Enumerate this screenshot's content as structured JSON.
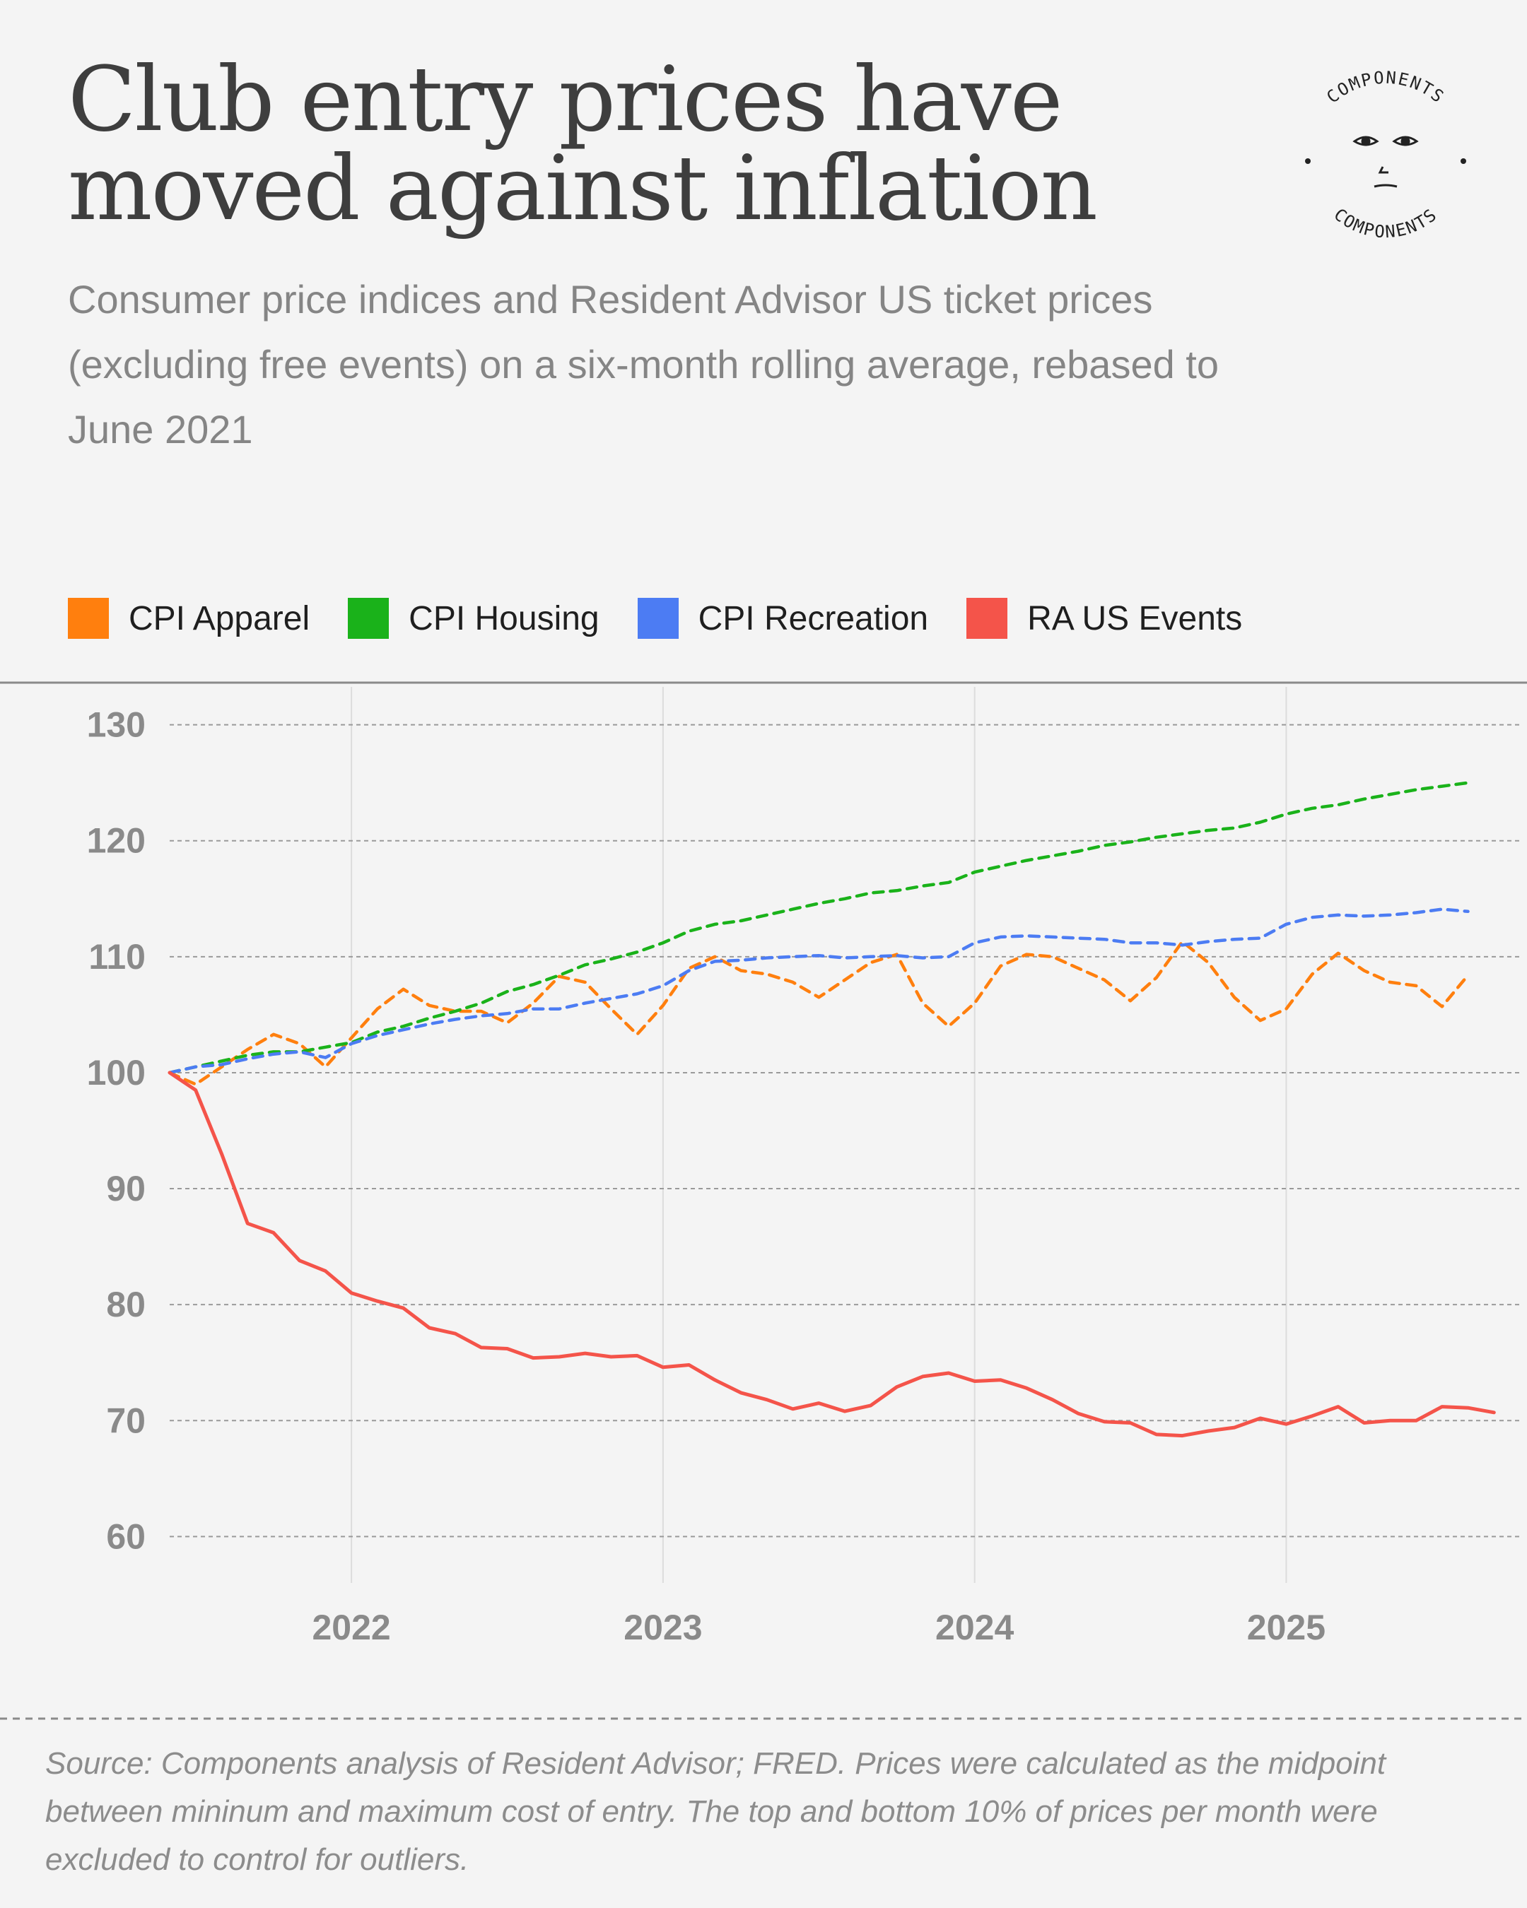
{
  "title": "Club entry prices have moved against inflation",
  "subtitle": "Consumer price indices and Resident Advisor US ticket prices (excluding free events) on a six-month rolling average, rebased to June 2021",
  "logo": {
    "text": "COMPONENTS",
    "icon": "face-icon"
  },
  "source": "Source: Components analysis of Resident Advisor; FRED. Prices were calculated as the midpoint between mininum and maximum cost of entry. The top and bottom 10% of prices per month were excluded to control for outliers.",
  "chart_data": {
    "type": "line",
    "title": "Club entry prices have moved against inflation",
    "ylim": [
      56,
      134
    ],
    "yticks": [
      60,
      70,
      80,
      90,
      100,
      110,
      120,
      130
    ],
    "xlim": [
      "2021-06",
      "2025-10"
    ],
    "xticks": [
      {
        "label": "2022",
        "x": "2022-01"
      },
      {
        "label": "2023",
        "x": "2023-01"
      },
      {
        "label": "2024",
        "x": "2024-01"
      },
      {
        "label": "2025",
        "x": "2025-01"
      }
    ],
    "grid": true,
    "legend_position": "top-left",
    "x": [
      "2021-06",
      "2021-07",
      "2021-08",
      "2021-09",
      "2021-10",
      "2021-11",
      "2021-12",
      "2022-01",
      "2022-02",
      "2022-03",
      "2022-04",
      "2022-05",
      "2022-06",
      "2022-07",
      "2022-08",
      "2022-09",
      "2022-10",
      "2022-11",
      "2022-12",
      "2023-01",
      "2023-02",
      "2023-03",
      "2023-04",
      "2023-05",
      "2023-06",
      "2023-07",
      "2023-08",
      "2023-09",
      "2023-10",
      "2023-11",
      "2023-12",
      "2024-01",
      "2024-02",
      "2024-03",
      "2024-04",
      "2024-05",
      "2024-06",
      "2024-07",
      "2024-08",
      "2024-09",
      "2024-10",
      "2024-11",
      "2024-12",
      "2025-01",
      "2025-02",
      "2025-03",
      "2025-04",
      "2025-05",
      "2025-06",
      "2025-07",
      "2025-08",
      "2025-09",
      "2025-10"
    ],
    "series": [
      {
        "name": "CPI Apparel",
        "color": "#ff7f0e",
        "dash": true,
        "values": [
          100,
          99,
          100.5,
          102,
          103.3,
          102.5,
          100.5,
          103,
          105.5,
          107.2,
          105.8,
          105.3,
          105.3,
          104.3,
          106,
          108.3,
          107.8,
          105.5,
          103.3,
          105.8,
          109,
          110,
          108.8,
          108.5,
          107.8,
          106.5,
          108,
          109.5,
          110.2,
          106,
          104,
          106,
          109.2,
          110.2,
          110,
          109,
          108,
          106.2,
          108.2,
          111.3,
          109.5,
          106.5,
          104.5,
          105.5,
          108.5,
          110.3,
          108.8,
          107.8,
          107.5,
          105.7,
          108.4,
          null,
          null
        ]
      },
      {
        "name": "CPI Housing",
        "color": "#1ab21a",
        "dash": true,
        "values": [
          100,
          100.5,
          101,
          101.5,
          101.8,
          101.8,
          102.2,
          102.6,
          103.5,
          104,
          104.7,
          105.3,
          106,
          107,
          107.6,
          108.4,
          109.3,
          109.8,
          110.4,
          111.2,
          112.2,
          112.8,
          113.1,
          113.6,
          114.1,
          114.6,
          115,
          115.5,
          115.7,
          116.1,
          116.4,
          117.3,
          117.8,
          118.3,
          118.7,
          119.1,
          119.6,
          119.9,
          120.3,
          120.6,
          120.9,
          121.1,
          121.6,
          122.3,
          122.8,
          123.1,
          123.6,
          124,
          124.4,
          124.7,
          125,
          null,
          null
        ]
      },
      {
        "name": "CPI Recreation",
        "color": "#4c7cf3",
        "dash": true,
        "values": [
          100,
          100.5,
          100.7,
          101.2,
          101.6,
          101.8,
          101.3,
          102.5,
          103.2,
          103.7,
          104.2,
          104.6,
          104.9,
          105.1,
          105.5,
          105.5,
          106,
          106.4,
          106.8,
          107.5,
          108.8,
          109.6,
          109.7,
          109.9,
          110,
          110.1,
          109.9,
          110,
          110.1,
          109.9,
          110,
          111.2,
          111.7,
          111.8,
          111.7,
          111.6,
          111.5,
          111.2,
          111.2,
          111,
          111.3,
          111.5,
          111.6,
          112.8,
          113.4,
          113.6,
          113.5,
          113.6,
          113.8,
          114.1,
          113.9,
          null,
          null
        ]
      },
      {
        "name": "RA US Events",
        "color": "#f4544a",
        "dash": false,
        "values": [
          100,
          98.5,
          93,
          87,
          86.2,
          83.8,
          82.9,
          81,
          80.3,
          79.7,
          78,
          77.5,
          76.3,
          76.2,
          75.4,
          75.5,
          75.8,
          75.5,
          75.6,
          74.6,
          74.8,
          73.5,
          72.4,
          71.8,
          71,
          71.5,
          70.8,
          71.3,
          72.9,
          73.8,
          74.1,
          73.4,
          73.5,
          72.8,
          71.8,
          70.6,
          69.9,
          69.8,
          68.8,
          68.7,
          69.1,
          69.4,
          70.2,
          69.7,
          70.4,
          71.2,
          69.8,
          70,
          70,
          71.2,
          71.1,
          70.7,
          null
        ]
      }
    ]
  }
}
